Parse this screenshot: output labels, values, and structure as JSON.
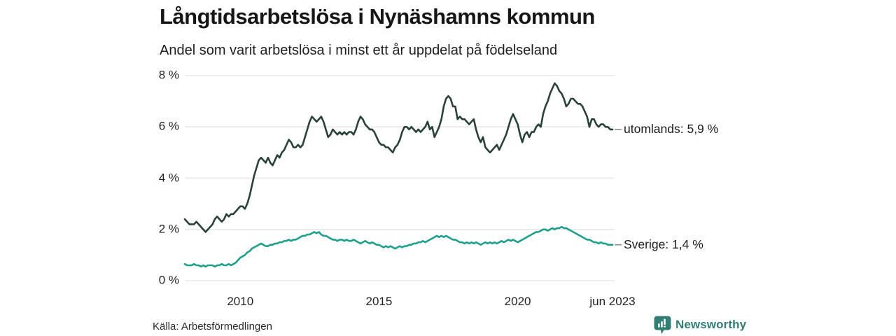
{
  "header": {
    "title": "Långtidsarbetslösa i Nynäshamns kommun",
    "subtitle": "Andel som varit arbetslösa i minst ett år uppdelat på födelseland"
  },
  "footer": {
    "source": "Källa: Arbetsförmedlingen",
    "brand": "Newsworthy",
    "brand_icon": "newsworthy-speech-bubble-bar-chart-icon"
  },
  "colors": {
    "utomlands_line": "#2A403B",
    "sverige_line": "#1FA08C",
    "grid": "#E3E3E3",
    "text": "#232323",
    "legend_tick": "#8A8A8A",
    "brand": "#327E74",
    "background": "#FFFFFF"
  },
  "chart_data": {
    "type": "line",
    "title": "Långtidsarbetslösa i Nynäshamns kommun",
    "subtitle": "Andel som varit arbetslösa i minst ett år uppdelat på födelseland",
    "unit": "%",
    "grid": "horizontal-only",
    "legend_position": "right-of-line-ends",
    "ylim": [
      0,
      8
    ],
    "yticks": [
      {
        "value": 0,
        "label": "0 %"
      },
      {
        "value": 2,
        "label": "2 %"
      },
      {
        "value": 4,
        "label": "4 %"
      },
      {
        "value": 6,
        "label": "6 %"
      },
      {
        "value": 8,
        "label": "8 %"
      }
    ],
    "x_start": "2008-01",
    "x_end": "2023-06",
    "x_frequency": "monthly",
    "xticks": [
      {
        "year": 2010.0,
        "label": "2010"
      },
      {
        "year": 2015.0,
        "label": "2015"
      },
      {
        "year": 2020.0,
        "label": "2020"
      },
      {
        "year": 2023.4167,
        "label": "jun 2023"
      }
    ],
    "series": [
      {
        "name": "utomlands",
        "legend_label": "utomlands: 5,9 %",
        "last_value": 5.9,
        "color": "#2A403B",
        "values": [
          2.4,
          2.3,
          2.2,
          2.2,
          2.2,
          2.3,
          2.2,
          2.1,
          2.0,
          1.9,
          2.0,
          2.1,
          2.2,
          2.4,
          2.5,
          2.4,
          2.3,
          2.4,
          2.6,
          2.5,
          2.6,
          2.6,
          2.7,
          2.8,
          2.9,
          2.9,
          2.8,
          3.0,
          3.3,
          3.7,
          4.1,
          4.4,
          4.7,
          4.8,
          4.7,
          4.6,
          4.8,
          4.6,
          4.5,
          4.7,
          4.9,
          4.8,
          5.0,
          5.1,
          5.3,
          5.5,
          5.4,
          5.2,
          5.2,
          5.3,
          5.2,
          5.3,
          5.6,
          5.9,
          6.2,
          6.4,
          6.3,
          6.2,
          6.3,
          6.4,
          6.2,
          5.9,
          5.6,
          5.7,
          5.9,
          5.8,
          5.7,
          5.8,
          5.7,
          5.8,
          5.7,
          5.8,
          5.8,
          5.7,
          5.9,
          6.2,
          6.4,
          6.3,
          6.1,
          6.0,
          5.9,
          5.9,
          5.8,
          5.6,
          5.4,
          5.3,
          5.3,
          5.2,
          5.2,
          5.1,
          5.0,
          5.2,
          5.3,
          5.5,
          5.8,
          6.0,
          6.0,
          5.9,
          6.0,
          5.9,
          5.8,
          5.9,
          5.8,
          5.9,
          6.0,
          6.2,
          5.9,
          6.0,
          5.6,
          5.8,
          6.0,
          6.3,
          6.8,
          7.1,
          7.2,
          7.1,
          6.8,
          6.8,
          6.3,
          6.4,
          6.3,
          6.3,
          6.2,
          6.1,
          6.2,
          6.3,
          5.9,
          5.6,
          5.4,
          5.6,
          5.2,
          5.1,
          5.0,
          5.1,
          5.2,
          5.3,
          5.1,
          5.3,
          5.5,
          5.7,
          6.0,
          6.3,
          6.5,
          6.3,
          6.1,
          5.7,
          5.4,
          5.7,
          5.8,
          5.6,
          5.8,
          5.8,
          6.0,
          6.1,
          6.0,
          6.5,
          6.8,
          7.0,
          7.3,
          7.5,
          7.7,
          7.6,
          7.4,
          7.3,
          7.1,
          6.8,
          6.9,
          7.1,
          7.1,
          7.0,
          6.9,
          6.9,
          6.8,
          6.6,
          6.4,
          6.0,
          6.3,
          6.3,
          6.1,
          6.0,
          6.1,
          6.1,
          6.0,
          6.0,
          5.9,
          5.9
        ]
      },
      {
        "name": "Sverige",
        "legend_label": "Sverige: 1,4 %",
        "last_value": 1.4,
        "color": "#1FA08C",
        "values": [
          0.65,
          0.6,
          0.6,
          0.6,
          0.65,
          0.6,
          0.6,
          0.55,
          0.6,
          0.55,
          0.6,
          0.6,
          0.6,
          0.55,
          0.6,
          0.6,
          0.65,
          0.6,
          0.6,
          0.65,
          0.6,
          0.65,
          0.7,
          0.8,
          0.9,
          0.95,
          1.0,
          1.1,
          1.15,
          1.25,
          1.3,
          1.35,
          1.4,
          1.45,
          1.4,
          1.35,
          1.35,
          1.4,
          1.4,
          1.45,
          1.45,
          1.5,
          1.5,
          1.55,
          1.55,
          1.6,
          1.55,
          1.6,
          1.6,
          1.65,
          1.7,
          1.75,
          1.75,
          1.8,
          1.8,
          1.85,
          1.9,
          1.85,
          1.9,
          1.8,
          1.75,
          1.75,
          1.7,
          1.65,
          1.6,
          1.6,
          1.55,
          1.6,
          1.6,
          1.55,
          1.6,
          1.55,
          1.55,
          1.6,
          1.55,
          1.5,
          1.45,
          1.5,
          1.55,
          1.5,
          1.45,
          1.5,
          1.45,
          1.4,
          1.4,
          1.35,
          1.3,
          1.35,
          1.3,
          1.35,
          1.3,
          1.25,
          1.3,
          1.35,
          1.3,
          1.35,
          1.35,
          1.4,
          1.4,
          1.45,
          1.45,
          1.5,
          1.5,
          1.55,
          1.5,
          1.55,
          1.6,
          1.65,
          1.7,
          1.75,
          1.7,
          1.75,
          1.7,
          1.75,
          1.7,
          1.65,
          1.6,
          1.6,
          1.55,
          1.5,
          1.5,
          1.45,
          1.5,
          1.45,
          1.5,
          1.45,
          1.5,
          1.45,
          1.4,
          1.45,
          1.5,
          1.45,
          1.5,
          1.45,
          1.5,
          1.45,
          1.5,
          1.55,
          1.5,
          1.55,
          1.6,
          1.55,
          1.6,
          1.55,
          1.5,
          1.55,
          1.6,
          1.65,
          1.7,
          1.75,
          1.8,
          1.85,
          1.9,
          1.9,
          1.95,
          2.0,
          2.0,
          1.95,
          2.0,
          2.05,
          2.0,
          2.05,
          2.05,
          2.1,
          2.05,
          2.05,
          2.0,
          1.95,
          1.9,
          1.85,
          1.8,
          1.75,
          1.7,
          1.65,
          1.6,
          1.6,
          1.55,
          1.5,
          1.5,
          1.45,
          1.5,
          1.45,
          1.45,
          1.4,
          1.4,
          1.4
        ]
      }
    ]
  }
}
